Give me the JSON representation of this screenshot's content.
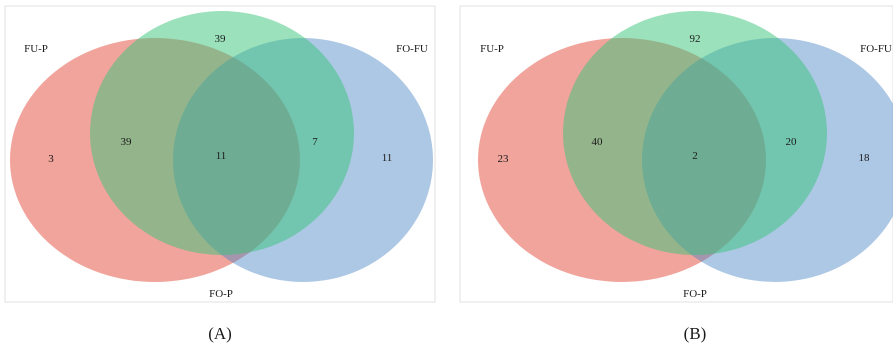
{
  "colors": {
    "set_fup": "#e8685a",
    "set_fop": "#4a86c4",
    "set_fofu": "#37c37a",
    "text": "#1a1a1a",
    "frame": "#e2e2e2"
  },
  "panels": [
    {
      "caption": "(A)",
      "sets": {
        "left": "FU-P",
        "top": "",
        "right": "FO-FU",
        "bottom": "FO-P"
      },
      "counts": {
        "left_only": "3",
        "top_only": "39",
        "right_only": "11",
        "left_top": "39",
        "center": "11",
        "top_right": "7"
      }
    },
    {
      "caption": "(B)",
      "sets": {
        "left": "FU-P",
        "top": "",
        "right": "FO-FU",
        "bottom": "FO-P"
      },
      "counts": {
        "left_only": "23",
        "top_only": "92",
        "right_only": "18",
        "left_top": "40",
        "center": "2",
        "top_right": "20"
      }
    }
  ]
}
